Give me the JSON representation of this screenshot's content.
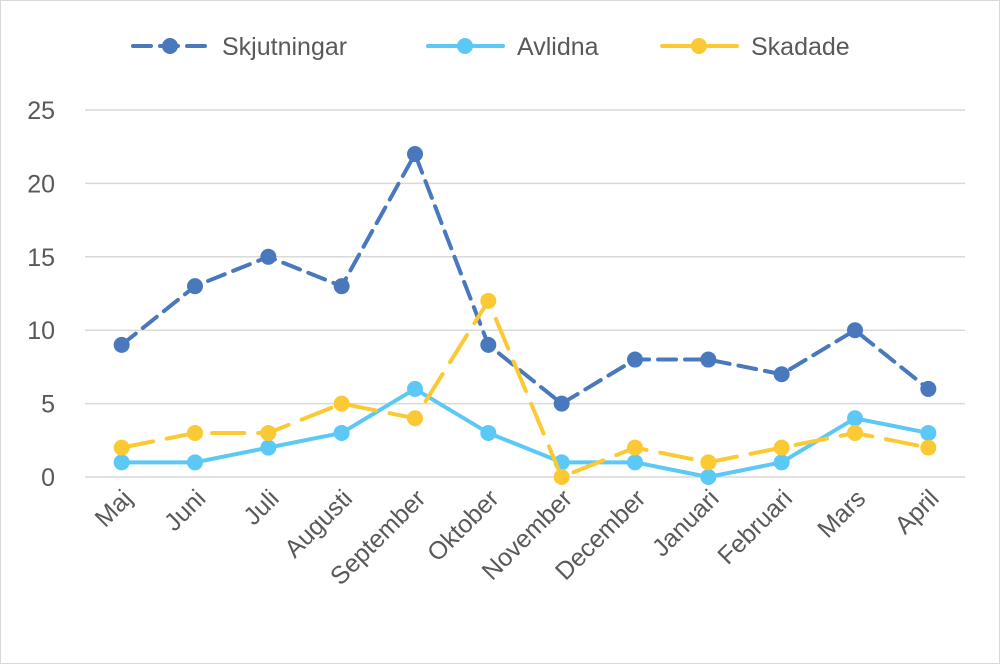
{
  "chart_data": {
    "type": "line",
    "categories": [
      "Maj",
      "Juni",
      "Juli",
      "Augusti",
      "September",
      "Oktober",
      "November",
      "December",
      "Januari",
      "Februari",
      "Mars",
      "April"
    ],
    "series": [
      {
        "name": "Skjutningar",
        "values": [
          9,
          13,
          15,
          13,
          22,
          9,
          5,
          8,
          8,
          7,
          10,
          6
        ],
        "color": "#4a78bd",
        "dash": "dashed"
      },
      {
        "name": "Avlidna",
        "values": [
          1,
          1,
          2,
          3,
          6,
          3,
          1,
          1,
          0,
          1,
          4,
          3
        ],
        "color": "#5bc8f5",
        "dash": "solid"
      },
      {
        "name": "Skadade",
        "values": [
          2,
          3,
          3,
          5,
          4,
          12,
          0,
          2,
          1,
          2,
          3,
          2
        ],
        "color": "#fbc934",
        "dash": "long-dash"
      }
    ],
    "ylim": [
      0,
      25
    ],
    "yticks": [
      0,
      5,
      10,
      15,
      20,
      25
    ],
    "grid": true,
    "legend": "top"
  }
}
